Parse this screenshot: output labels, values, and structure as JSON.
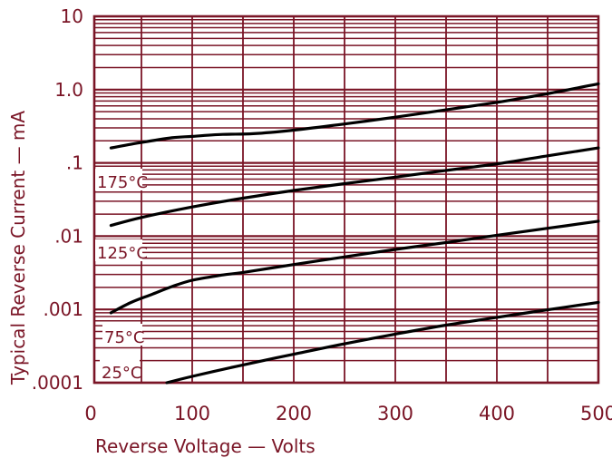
{
  "chart_data": {
    "type": "line",
    "xlabel": "Reverse Voltage — Volts",
    "ylabel": "Typical Reverse Current — mA",
    "x_ticks": [
      "0",
      "100",
      "200",
      "300",
      "400",
      "500"
    ],
    "y_ticks": [
      "10",
      "1.0",
      ".1",
      ".01",
      ".001",
      ".0001"
    ],
    "y_tick_values": [
      10,
      1,
      0.1,
      0.01,
      0.001,
      0.0001
    ],
    "xlim": [
      0,
      500
    ],
    "ylim": [
      0.0001,
      10
    ],
    "y_scale": "log",
    "grid": true,
    "series": [
      {
        "name": "175°C",
        "x": [
          20,
          50,
          80,
          100,
          130,
          160,
          200,
          250,
          300,
          350,
          400,
          450,
          500
        ],
        "values": [
          0.16,
          0.19,
          0.22,
          0.23,
          0.245,
          0.25,
          0.28,
          0.34,
          0.42,
          0.53,
          0.67,
          0.88,
          1.2
        ]
      },
      {
        "name": "125°C",
        "x": [
          20,
          50,
          100,
          150,
          200,
          250,
          300,
          350,
          400,
          450,
          500
        ],
        "values": [
          0.014,
          0.018,
          0.025,
          0.033,
          0.042,
          0.052,
          0.064,
          0.079,
          0.097,
          0.125,
          0.16
        ]
      },
      {
        "name": "75°C",
        "x": [
          20,
          40,
          60,
          80,
          100,
          130,
          150,
          200,
          250,
          300,
          350,
          400,
          450,
          500
        ],
        "values": [
          0.0009,
          0.00125,
          0.0016,
          0.00205,
          0.0025,
          0.00295,
          0.0032,
          0.0041,
          0.0052,
          0.0066,
          0.0082,
          0.0103,
          0.0128,
          0.016
        ]
      },
      {
        "name": "25°C",
        "x": [
          75,
          100,
          150,
          200,
          250,
          300,
          350,
          400,
          450,
          500
        ],
        "values": [
          0.0001,
          0.000122,
          0.000175,
          0.000245,
          0.00034,
          0.00046,
          0.00061,
          0.00078,
          0.00099,
          0.00125
        ]
      }
    ]
  },
  "colors": {
    "line": "#7a1526",
    "curve": "#000000",
    "background": "#ffffff"
  }
}
